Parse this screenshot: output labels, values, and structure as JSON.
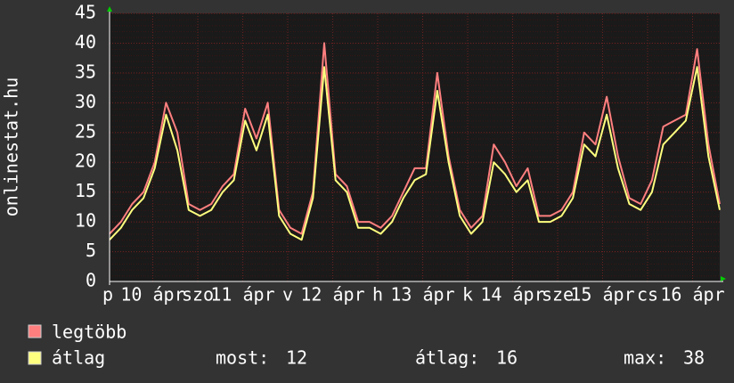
{
  "chart_data": {
    "type": "line",
    "ylabel": "onlinestat.hu",
    "xlabels": [
      "p",
      "10 ápr",
      "szo",
      "11 ápr",
      "v",
      "12 ápr",
      "h",
      "13 ápr",
      "k",
      "14 ápr",
      "sze",
      "15 ápr",
      "cs",
      "16 ápr"
    ],
    "ylim": [
      0,
      45
    ],
    "yticks": [
      0,
      5,
      10,
      15,
      20,
      25,
      30,
      35,
      40,
      45
    ],
    "grid": true,
    "series": [
      {
        "name": "legtöbb",
        "color": "#ff7f7f",
        "values": [
          8,
          10,
          13,
          15,
          20,
          30,
          25,
          13,
          12,
          13,
          16,
          18,
          29,
          24,
          30,
          12,
          9,
          8,
          15,
          40,
          18,
          16,
          10,
          10,
          9,
          11,
          15,
          19,
          19,
          35,
          21,
          12,
          9,
          11,
          23,
          20,
          16,
          19,
          11,
          11,
          12,
          15,
          25,
          23,
          31,
          21,
          14,
          13,
          17,
          26,
          27,
          28,
          39,
          23,
          13
        ]
      },
      {
        "name": "átlag",
        "color": "#ffff7f",
        "values": [
          7,
          9,
          12,
          14,
          19,
          28,
          22,
          12,
          11,
          12,
          15,
          17,
          27,
          22,
          28,
          11,
          8,
          7,
          14,
          36,
          17,
          15,
          9,
          9,
          8,
          10,
          14,
          17,
          18,
          32,
          20,
          11,
          8,
          10,
          20,
          18,
          15,
          17,
          10,
          10,
          11,
          14,
          23,
          21,
          28,
          19,
          13,
          12,
          15,
          23,
          25,
          27,
          36,
          21,
          12
        ]
      }
    ],
    "stats": [
      {
        "label": "most:",
        "value": 12
      },
      {
        "label": "átlag:",
        "value": 16
      },
      {
        "label": "max:",
        "value": 38
      }
    ]
  }
}
